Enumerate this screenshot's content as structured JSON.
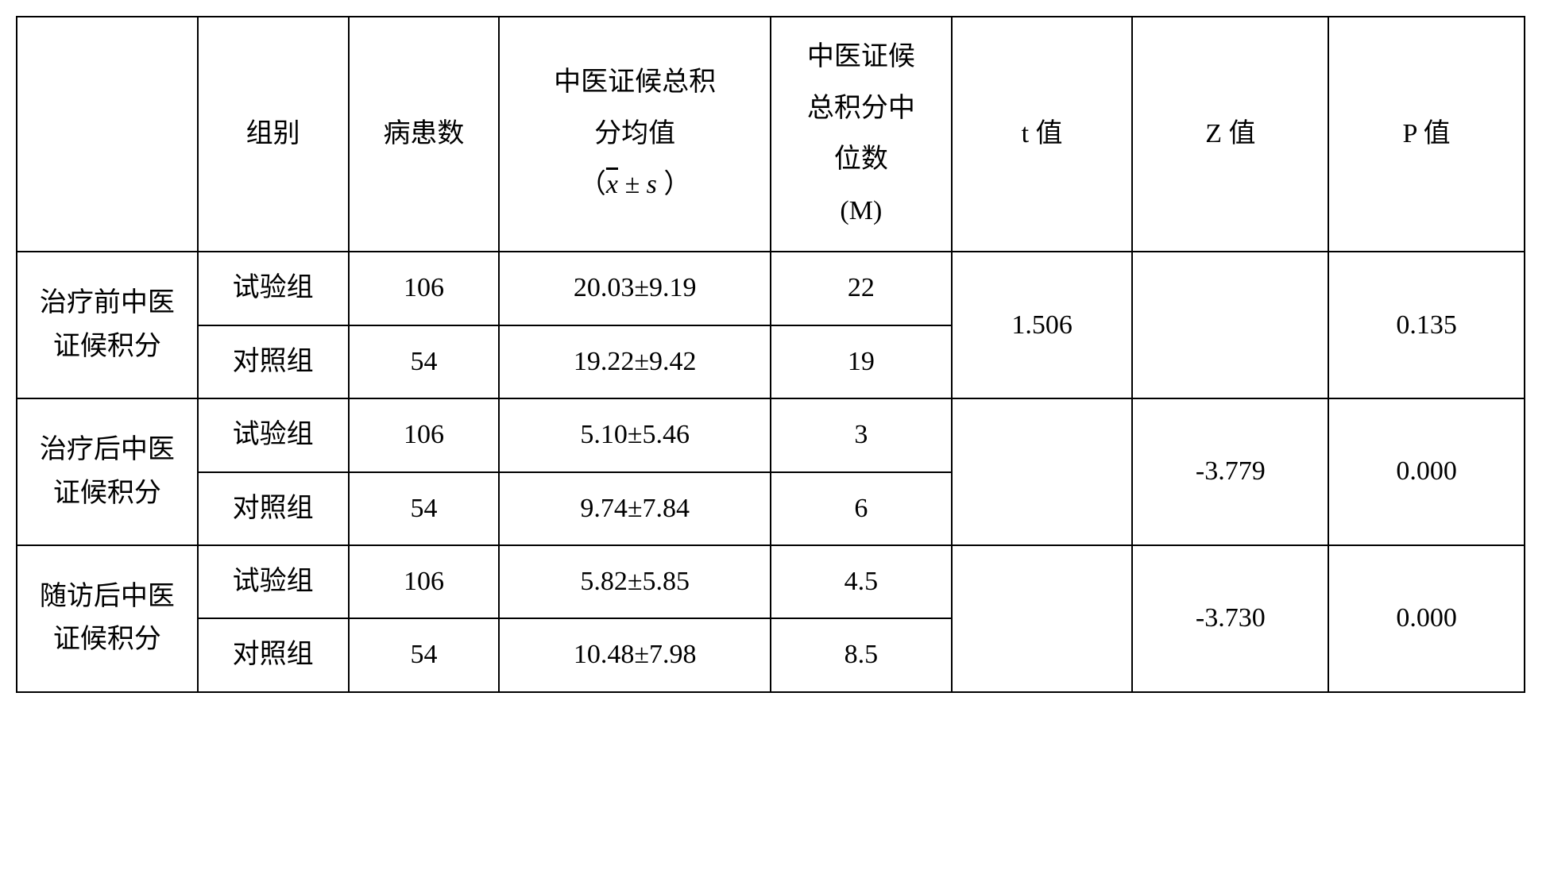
{
  "table": {
    "background_color": "#ffffff",
    "border_color": "#000000",
    "font_size_pt": 26,
    "headers": {
      "c0": "",
      "c1": "组别",
      "c2": "病患数",
      "c3_l1": "中医证候总积",
      "c3_l2": "分均值",
      "c3_l3_pre": "（",
      "c3_l3_x": "x",
      "c3_l3_pm": " ± ",
      "c3_l3_s": "s",
      "c3_l3_post": " ）",
      "c4_l1": "中医证候",
      "c4_l2": "总积分中",
      "c4_l3": "位数",
      "c4_l4": "(M)",
      "c5": "t 值",
      "c6": "Z 值",
      "c7": "P 值"
    },
    "sections": [
      {
        "label_l1": "治疗前中医",
        "label_l2": "证候积分",
        "rows": [
          {
            "group": "试验组",
            "n": "106",
            "mean_sd": "20.03±9.19",
            "median": "22"
          },
          {
            "group": "对照组",
            "n": "54",
            "mean_sd": "19.22±9.42",
            "median": "19"
          }
        ],
        "t": "1.506",
        "z": "",
        "p": "0.135"
      },
      {
        "label_l1": "治疗后中医",
        "label_l2": "证候积分",
        "rows": [
          {
            "group": "试验组",
            "n": "106",
            "mean_sd": "5.10±5.46",
            "median": "3"
          },
          {
            "group": "对照组",
            "n": "54",
            "mean_sd": "9.74±7.84",
            "median": "6"
          }
        ],
        "t": "",
        "z": "-3.779",
        "p": "0.000"
      },
      {
        "label_l1": "随访后中医",
        "label_l2": "证候积分",
        "rows": [
          {
            "group": "试验组",
            "n": "106",
            "mean_sd": "5.82±5.85",
            "median": "4.5"
          },
          {
            "group": "对照组",
            "n": "54",
            "mean_sd": "10.48±7.98",
            "median": "8.5"
          }
        ],
        "t": "",
        "z": "-3.730",
        "p": "0.000"
      }
    ]
  }
}
